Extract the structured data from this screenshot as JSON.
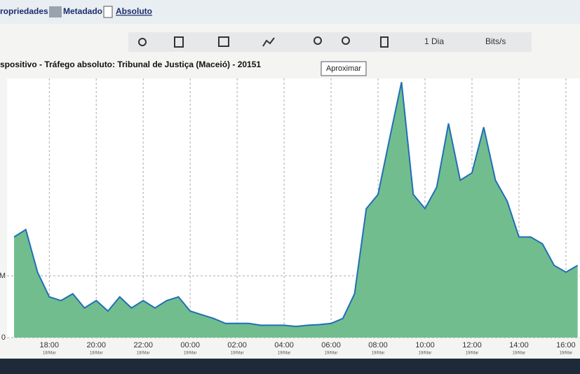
{
  "ui": {
    "tabs": [
      "ropriedades",
      "Metadado",
      "Absoluto"
    ],
    "period": "1 Dia",
    "unit": "Bits/s",
    "tooltip": "Aproximar"
  },
  "chart_data": {
    "type": "area",
    "title": "spositivo - Tráfego absoluto: Tribunal de Justiça (Maceió) - 20151",
    "x": [
      16.5,
      17,
      17.5,
      18,
      18.5,
      19,
      19.5,
      20,
      20.5,
      21,
      21.5,
      22,
      22.5,
      23,
      23.5,
      24,
      24.5,
      25,
      25.5,
      26,
      26.5,
      27,
      27.5,
      28,
      28.5,
      29,
      29.5,
      30,
      30.5,
      31,
      31.5,
      32,
      32.5,
      33,
      33.5,
      34,
      34.5,
      35,
      35.5,
      36,
      36.5,
      37,
      37.5,
      38,
      38.5,
      39,
      39.5,
      40,
      40.5
    ],
    "series": [
      {
        "name": "Tráfego",
        "color": "#1f6fb5",
        "fill": "#72bd8e",
        "values": [
          1.63,
          1.75,
          1.06,
          0.66,
          0.6,
          0.71,
          0.48,
          0.6,
          0.43,
          0.66,
          0.48,
          0.6,
          0.48,
          0.6,
          0.66,
          0.43,
          0.37,
          0.31,
          0.23,
          0.23,
          0.23,
          0.2,
          0.2,
          0.2,
          0.18,
          0.2,
          0.21,
          0.23,
          0.31,
          0.71,
          2.09,
          2.32,
          3.24,
          4.14,
          2.32,
          2.09,
          2.44,
          3.47,
          2.55,
          2.67,
          3.41,
          2.55,
          2.21,
          1.63,
          1.63,
          1.52,
          1.17,
          1.06,
          1.17
        ]
      }
    ],
    "xlim": [
      16.2,
      40.6
    ],
    "xticks": [
      {
        "value": 18,
        "label": "18:00"
      },
      {
        "value": 20,
        "label": "20:00"
      },
      {
        "value": 22,
        "label": "22:00"
      },
      {
        "value": 24,
        "label": "00:00"
      },
      {
        "value": 26,
        "label": "02:00"
      },
      {
        "value": 28,
        "label": "04:00"
      },
      {
        "value": 30,
        "label": "06:00"
      },
      {
        "value": 32,
        "label": "08:00"
      },
      {
        "value": 34,
        "label": "10:00"
      },
      {
        "value": 36,
        "label": "12:00"
      },
      {
        "value": 38,
        "label": "14:00"
      },
      {
        "value": 40,
        "label": "16:00"
      }
    ],
    "xtick_dates": [
      "18/Mar",
      "18/Mar",
      "18/Mar",
      "19/Mar",
      "19/Mar",
      "19/Mar",
      "19/Mar",
      "19/Mar",
      "19/Mar",
      "19/Mar",
      "19/Mar",
      "19/Mar"
    ],
    "ylim": [
      0,
      4.2
    ],
    "yticks": [
      0,
      {
        "value": 1,
        "label": "M"
      }
    ],
    "grid": true
  }
}
